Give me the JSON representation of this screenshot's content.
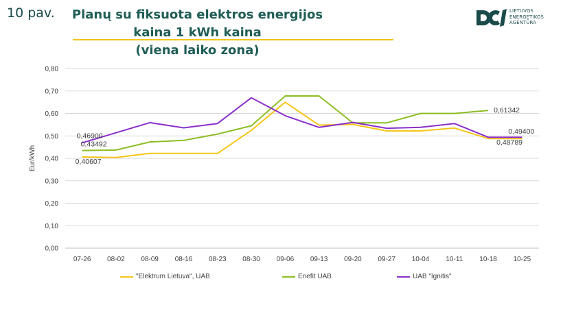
{
  "header": {
    "slide_number": "10 pav.",
    "title_line1": "Planų su fiksuota elektros energijos kaina 1 kWh kaina",
    "title_line2": "(viena laiko zona)"
  },
  "logo": {
    "line1": "LIETUVOS",
    "line2": "ENERGETIKOS",
    "line3": "AGENTŪRA",
    "color": "#1b4a4a"
  },
  "chart_data": {
    "type": "line",
    "ylabel": "Eur/kWh",
    "ylim": [
      0,
      0.8
    ],
    "ytick_labels": [
      "0,00",
      "0,10",
      "0,20",
      "0,30",
      "0,40",
      "0,50",
      "0,60",
      "0,70",
      "0,80"
    ],
    "grid": true,
    "legend_position": "bottom",
    "categories": [
      "07-26",
      "08-02",
      "08-09",
      "08-16",
      "08-23",
      "08-30",
      "09-06",
      "09-13",
      "09-20",
      "09-27",
      "10-04",
      "10-11",
      "10-18",
      "10-25"
    ],
    "series": [
      {
        "name": "\"Elektrum Lietuva\", UAB",
        "color": "#f5c518",
        "values": [
          0.40607,
          0.404,
          0.422,
          0.422,
          0.422,
          0.525,
          0.65,
          0.548,
          0.551,
          0.522,
          0.522,
          0.535,
          0.48789,
          0.48789
        ],
        "labels": [
          {
            "index": 0,
            "text": "0,40607"
          },
          {
            "index": 12,
            "text": "0,48789"
          }
        ]
      },
      {
        "name": "Enefit UAB",
        "color": "#8cbd22",
        "values": [
          0.43492,
          0.437,
          0.473,
          0.48,
          0.508,
          0.545,
          0.678,
          0.678,
          0.558,
          0.558,
          0.6,
          0.6,
          0.61342,
          null
        ],
        "labels": [
          {
            "index": 0,
            "text": "0,43492"
          },
          {
            "index": 12,
            "text": "0,61342"
          }
        ]
      },
      {
        "name": "UAB \"Ignitis\"",
        "color": "#8b2fc9",
        "values": [
          0.469,
          0.514,
          0.559,
          0.536,
          0.555,
          0.67,
          0.59,
          0.538,
          0.56,
          0.534,
          0.538,
          0.555,
          0.494,
          0.494
        ],
        "labels": [
          {
            "index": 0,
            "text": "0,46900"
          },
          {
            "index": 13,
            "text": "0,49400"
          }
        ]
      }
    ]
  }
}
